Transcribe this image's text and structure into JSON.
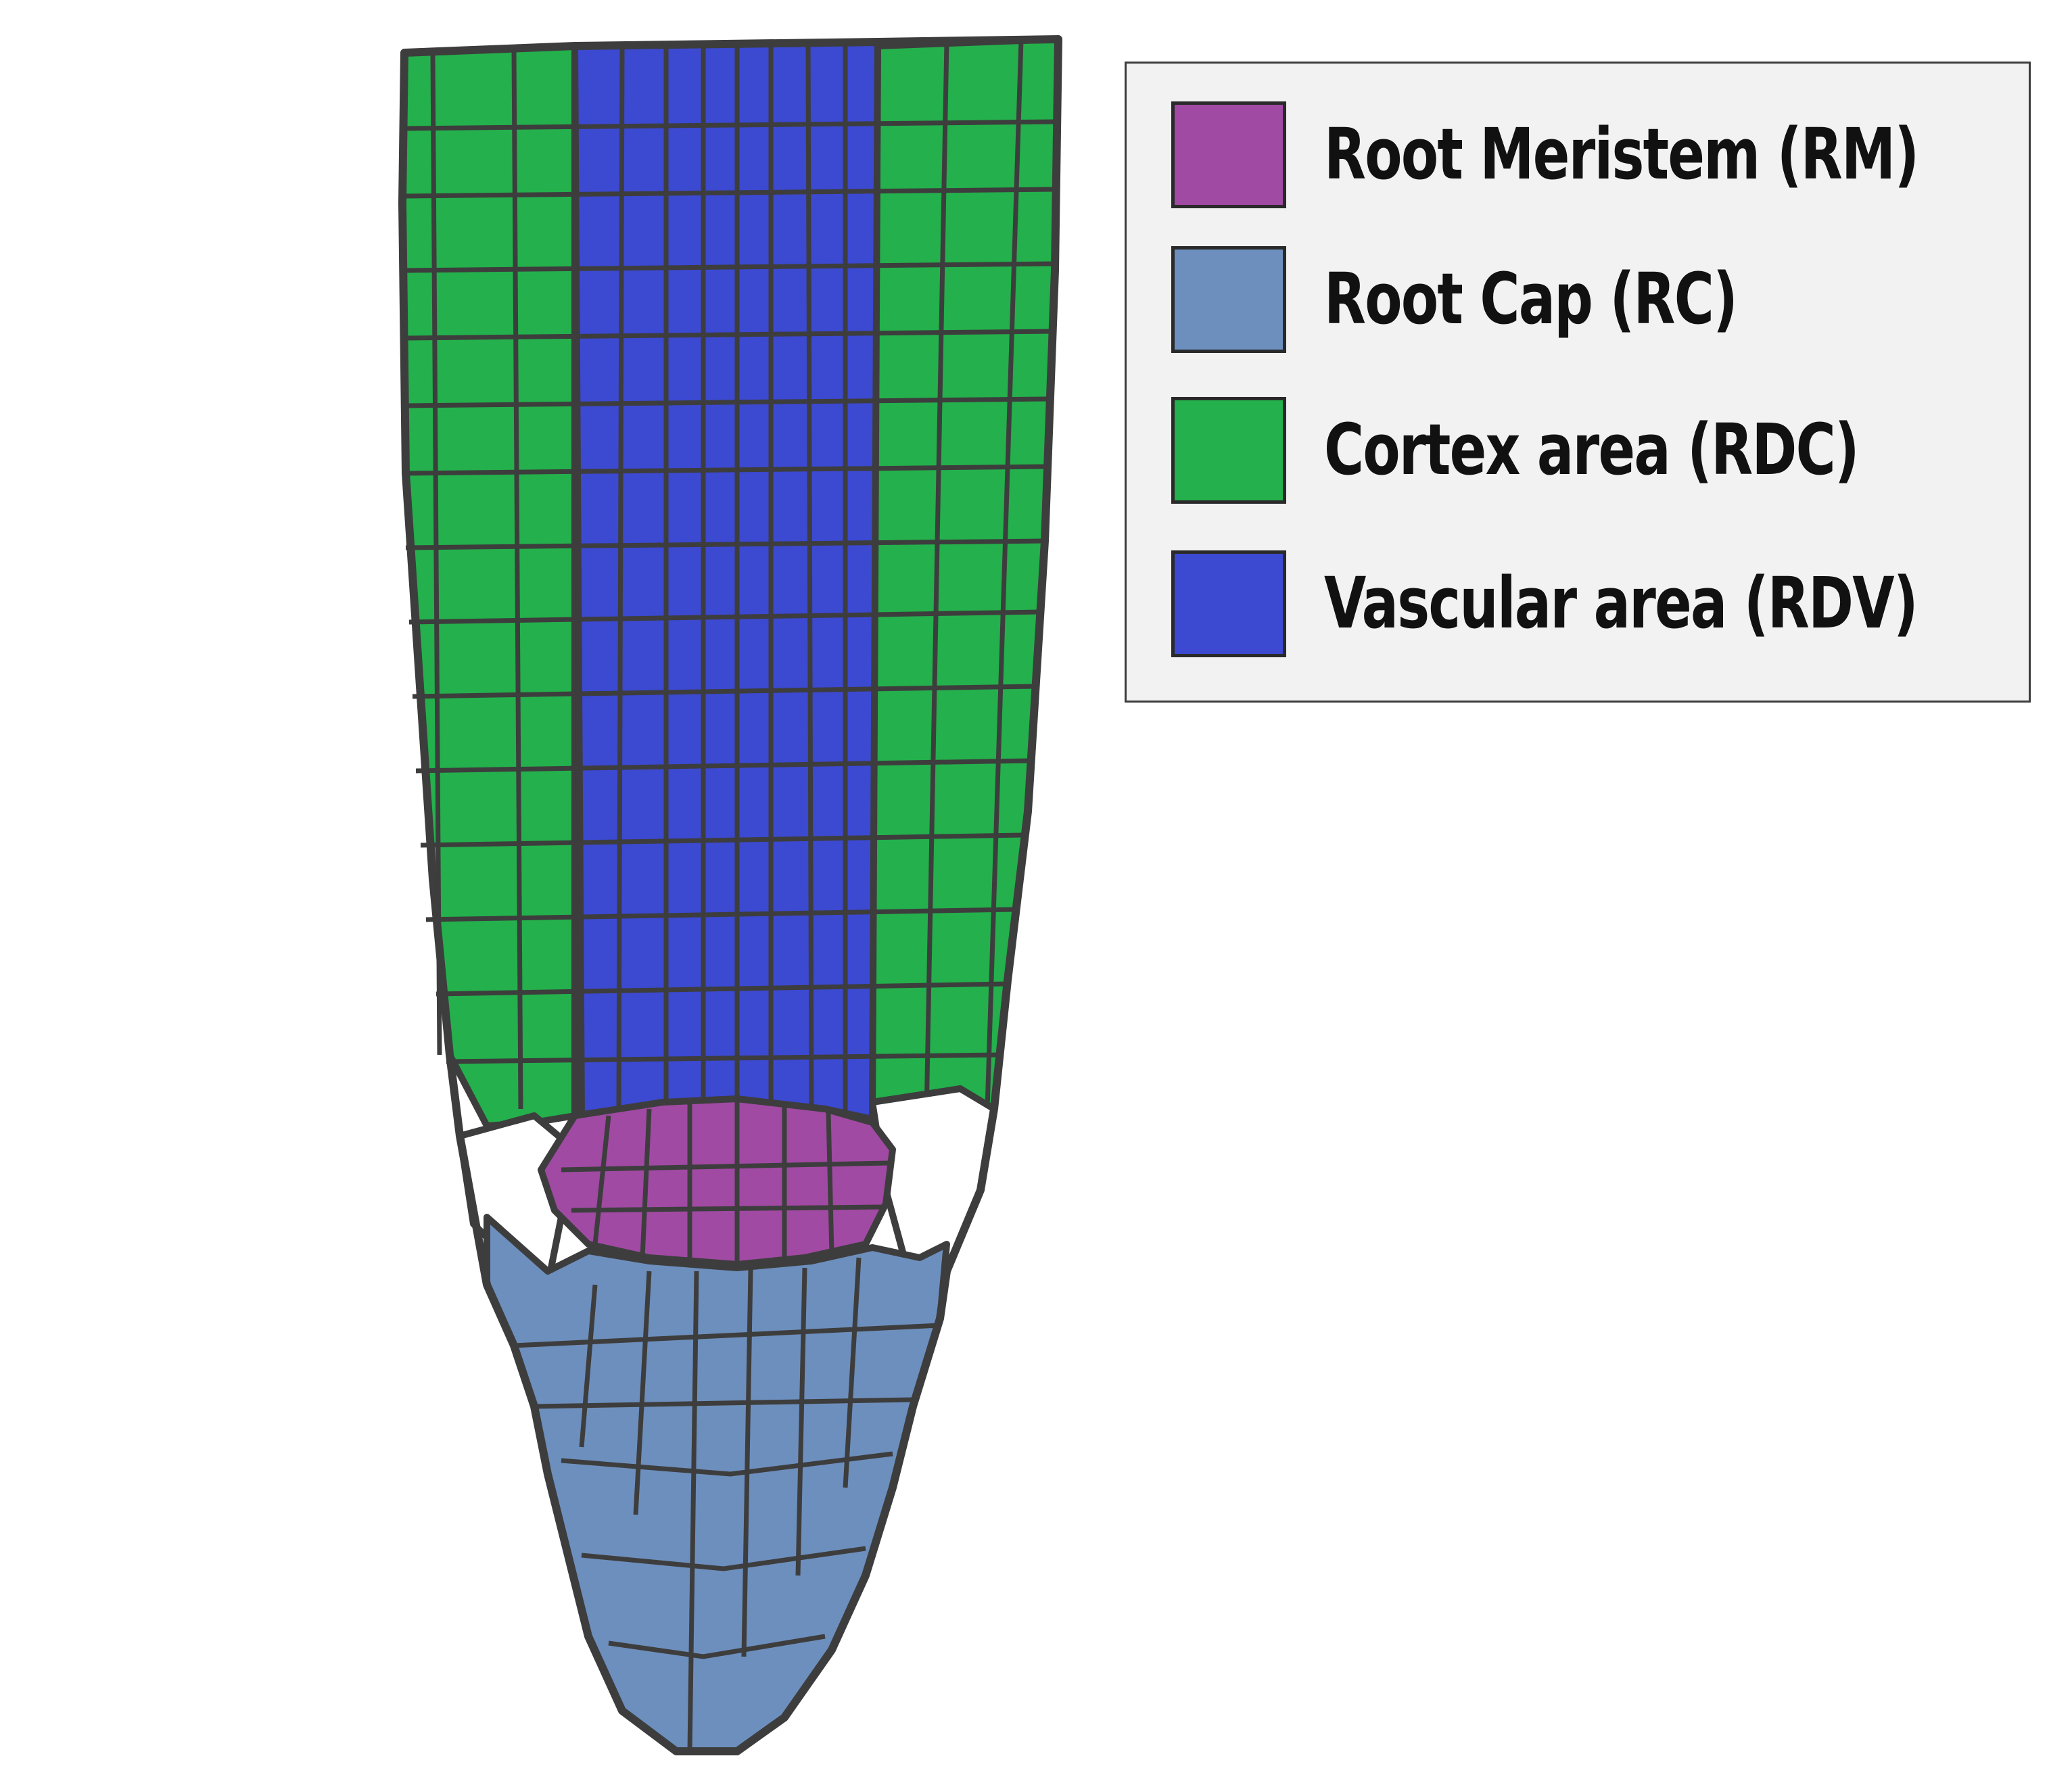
{
  "colors": {
    "root_meristem": "#a04aa3",
    "root_cap": "#6d8fbd",
    "cortex": "#24b04c",
    "vascular": "#3c49d1",
    "outline": "#3d3d3d",
    "white_cells": "#ffffff",
    "legend_background": "#f2f2f2"
  },
  "legend": {
    "items": [
      {
        "label": "Root Meristem (RM)",
        "color": "#a04aa3"
      },
      {
        "label": "Root Cap (RC)",
        "color": "#6d8fbd"
      },
      {
        "label": "Cortex area (RDC)",
        "color": "#24b04c"
      },
      {
        "label": "Vascular area (RDV)",
        "color": "#3c49d1"
      }
    ]
  }
}
